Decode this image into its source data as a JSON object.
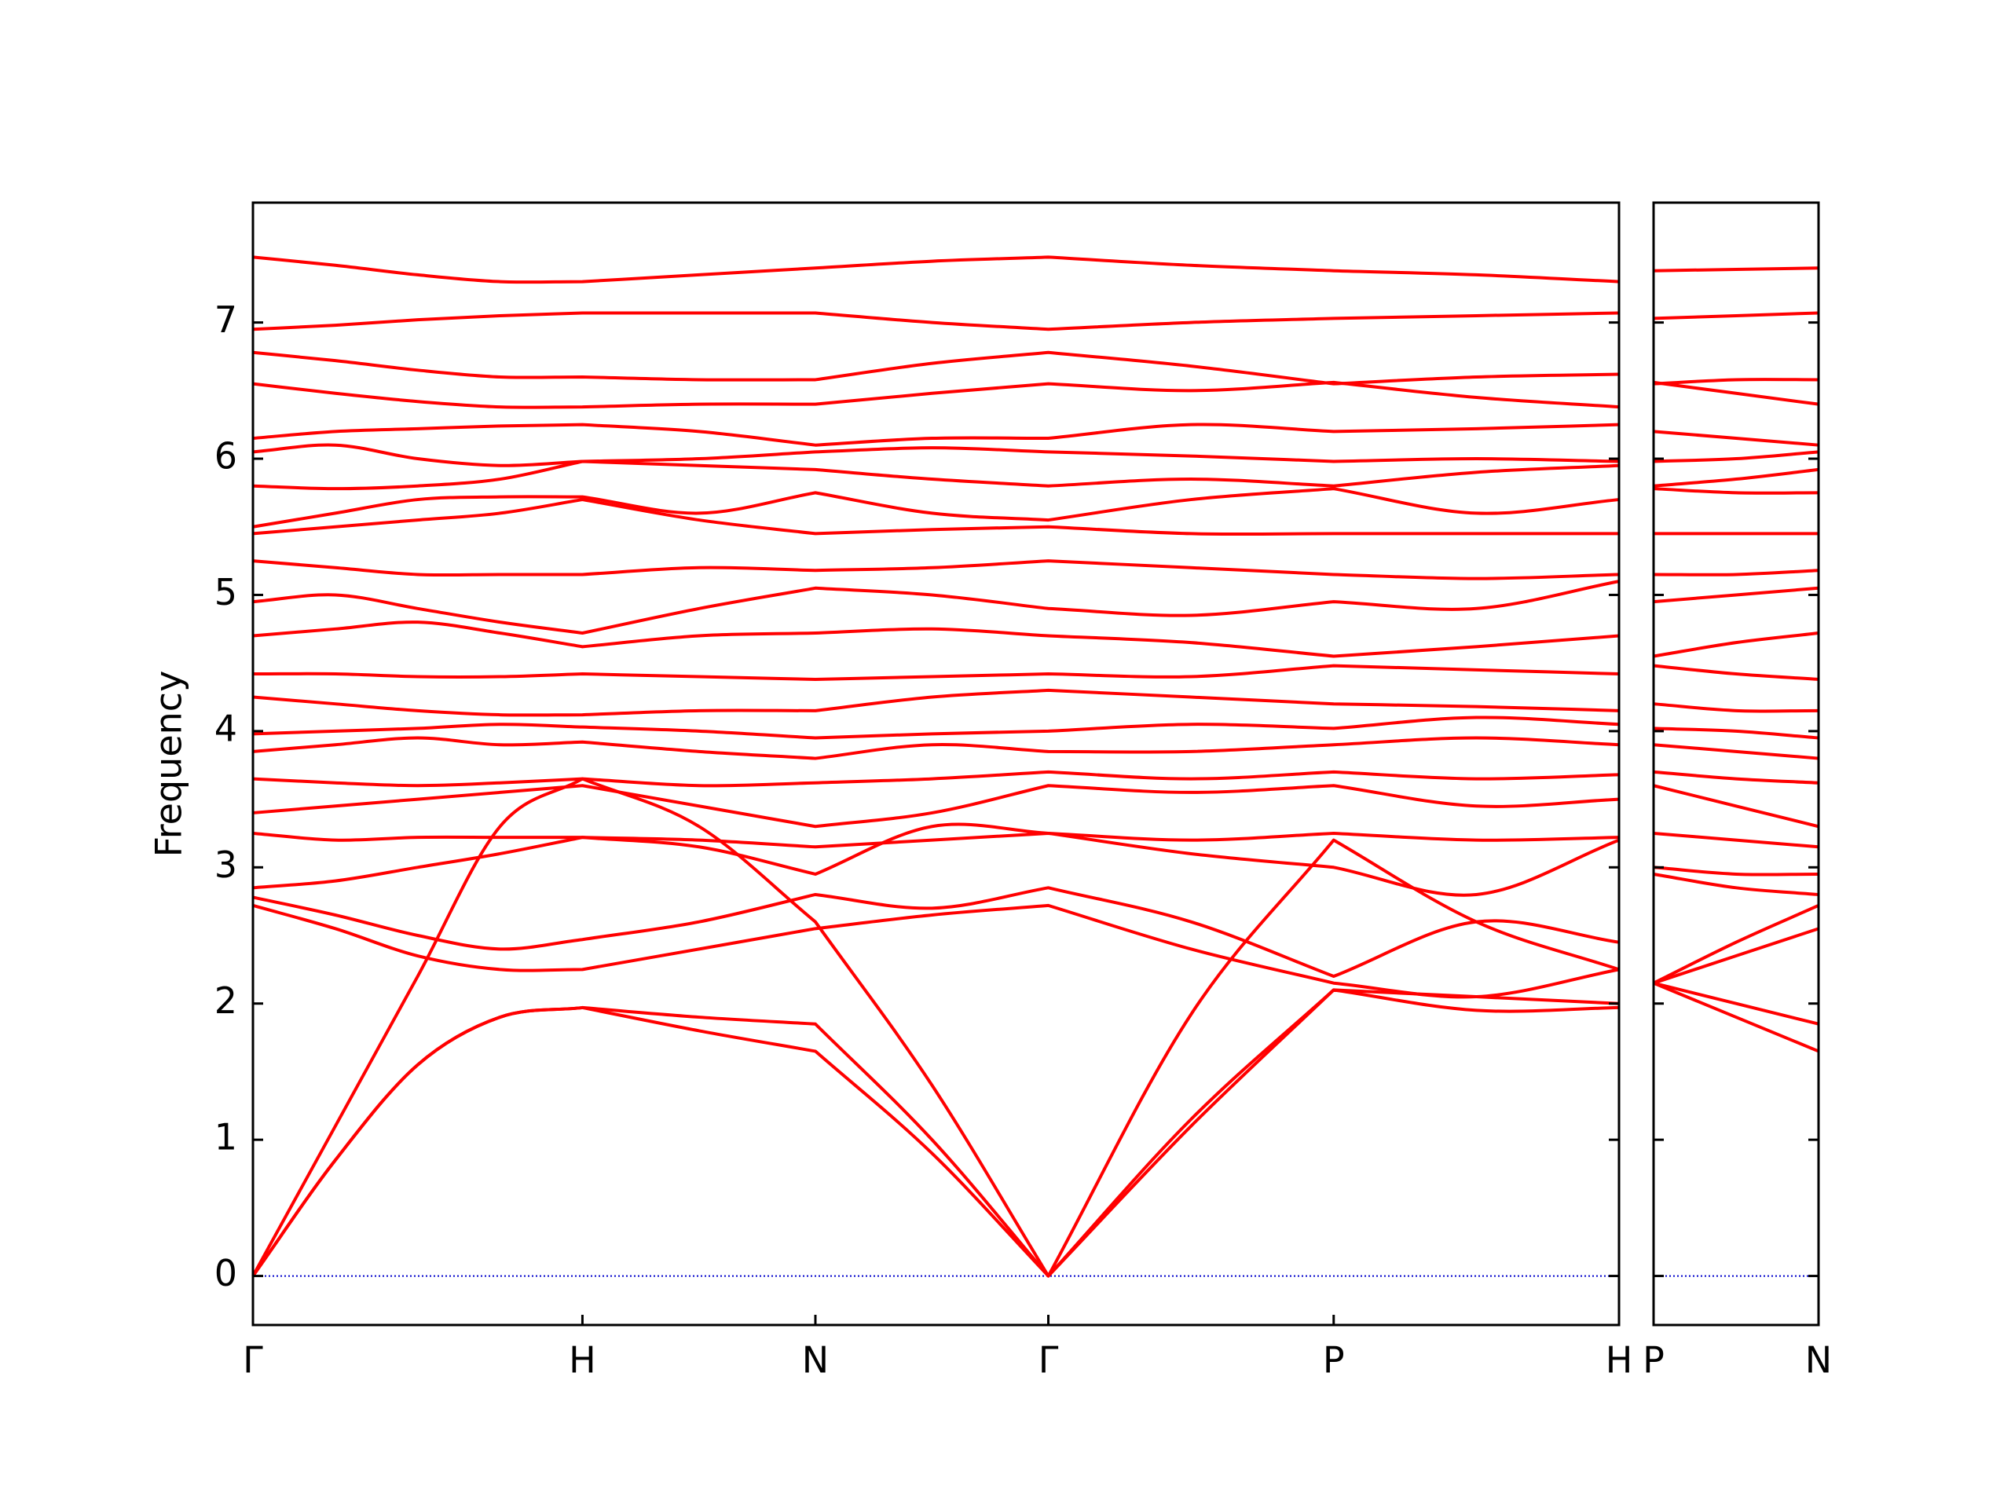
{
  "chart_data": [
    {
      "type": "line",
      "ylabel": "Frequency",
      "color": "#ff0000",
      "hlines": [
        0
      ],
      "hline_color": "#0000cc",
      "ytick_labels": true,
      "x": [
        0,
        0.25,
        0.5,
        0.75,
        1,
        1.354,
        1.707,
        2.061,
        2.414,
        2.847,
        3.28,
        3.713,
        4.146
      ],
      "xlim": [
        0,
        4.146
      ],
      "xticks": [
        {
          "value": 0,
          "label": "Γ"
        },
        {
          "value": 1,
          "label": "H"
        },
        {
          "value": 1.707,
          "label": "N"
        },
        {
          "value": 2.414,
          "label": "Γ"
        },
        {
          "value": 3.28,
          "label": "P"
        },
        {
          "value": 4.146,
          "label": "H"
        }
      ],
      "ylim": [
        -0.36,
        7.88
      ],
      "yticks": [
        0,
        1,
        2,
        3,
        4,
        5,
        6,
        7
      ],
      "series": [
        {
          "values": [
            0,
            0.85,
            1.55,
            1.9,
            1.97,
            1.8,
            1.65,
            0.9,
            0,
            1.1,
            2.1,
            1.95,
            1.97
          ]
        },
        {
          "values": [
            0,
            0.85,
            1.55,
            1.9,
            1.97,
            1.9,
            1.85,
            1.0,
            0,
            1.15,
            2.1,
            2.05,
            2.0
          ]
        },
        {
          "values": [
            0,
            1.1,
            2.2,
            3.3,
            3.65,
            3.3,
            2.6,
            1.4,
            0,
            1.92,
            3.2,
            2.6,
            2.25
          ]
        },
        {
          "values": [
            2.72,
            2.55,
            2.35,
            2.25,
            2.25,
            2.4,
            2.55,
            2.65,
            2.72,
            2.4,
            2.15,
            2.05,
            2.25
          ]
        },
        {
          "values": [
            2.78,
            2.65,
            2.5,
            2.4,
            2.47,
            2.6,
            2.8,
            2.7,
            2.85,
            2.6,
            2.2,
            2.6,
            2.45
          ]
        },
        {
          "values": [
            2.85,
            2.9,
            3.0,
            3.1,
            3.22,
            3.15,
            2.95,
            3.3,
            3.25,
            3.1,
            3.0,
            2.8,
            3.2
          ]
        },
        {
          "values": [
            3.25,
            3.2,
            3.22,
            3.22,
            3.22,
            3.2,
            3.15,
            3.2,
            3.25,
            3.2,
            3.25,
            3.2,
            3.22
          ]
        },
        {
          "values": [
            3.4,
            3.45,
            3.5,
            3.55,
            3.6,
            3.45,
            3.3,
            3.4,
            3.6,
            3.55,
            3.6,
            3.45,
            3.5
          ]
        },
        {
          "values": [
            3.65,
            3.62,
            3.6,
            3.62,
            3.65,
            3.6,
            3.62,
            3.65,
            3.7,
            3.65,
            3.7,
            3.65,
            3.68
          ]
        },
        {
          "values": [
            3.85,
            3.9,
            3.95,
            3.9,
            3.92,
            3.85,
            3.8,
            3.9,
            3.85,
            3.85,
            3.9,
            3.95,
            3.9
          ]
        },
        {
          "values": [
            3.98,
            4.0,
            4.02,
            4.05,
            4.03,
            4.0,
            3.95,
            3.98,
            4.0,
            4.05,
            4.02,
            4.1,
            4.05
          ]
        },
        {
          "values": [
            4.25,
            4.2,
            4.15,
            4.12,
            4.12,
            4.15,
            4.15,
            4.25,
            4.3,
            4.25,
            4.2,
            4.18,
            4.15
          ]
        },
        {
          "values": [
            4.42,
            4.42,
            4.4,
            4.4,
            4.42,
            4.4,
            4.38,
            4.4,
            4.42,
            4.4,
            4.48,
            4.45,
            4.42
          ]
        },
        {
          "values": [
            4.7,
            4.75,
            4.8,
            4.72,
            4.62,
            4.7,
            4.72,
            4.75,
            4.7,
            4.65,
            4.55,
            4.62,
            4.7
          ]
        },
        {
          "values": [
            4.95,
            5.0,
            4.9,
            4.8,
            4.72,
            4.9,
            5.05,
            5.0,
            4.9,
            4.85,
            4.95,
            4.9,
            5.1
          ]
        },
        {
          "values": [
            5.25,
            5.2,
            5.15,
            5.15,
            5.15,
            5.2,
            5.18,
            5.2,
            5.25,
            5.2,
            5.15,
            5.12,
            5.15
          ]
        },
        {
          "values": [
            5.45,
            5.5,
            5.55,
            5.6,
            5.7,
            5.55,
            5.45,
            5.48,
            5.5,
            5.45,
            5.45,
            5.45,
            5.45
          ]
        },
        {
          "values": [
            5.5,
            5.6,
            5.7,
            5.72,
            5.72,
            5.6,
            5.75,
            5.6,
            5.55,
            5.7,
            5.78,
            5.6,
            5.7
          ]
        },
        {
          "values": [
            5.8,
            5.78,
            5.8,
            5.85,
            5.98,
            5.95,
            5.92,
            5.85,
            5.8,
            5.85,
            5.8,
            5.9,
            5.95
          ]
        },
        {
          "values": [
            6.05,
            6.1,
            6.0,
            5.95,
            5.98,
            6.0,
            6.05,
            6.08,
            6.05,
            6.02,
            5.98,
            6.0,
            5.98
          ]
        },
        {
          "values": [
            6.15,
            6.2,
            6.22,
            6.24,
            6.25,
            6.2,
            6.1,
            6.15,
            6.15,
            6.25,
            6.2,
            6.22,
            6.25
          ]
        },
        {
          "values": [
            6.55,
            6.48,
            6.42,
            6.38,
            6.38,
            6.4,
            6.4,
            6.48,
            6.55,
            6.5,
            6.56,
            6.45,
            6.38
          ]
        },
        {
          "values": [
            6.78,
            6.72,
            6.65,
            6.6,
            6.6,
            6.58,
            6.58,
            6.7,
            6.78,
            6.68,
            6.55,
            6.6,
            6.62
          ]
        },
        {
          "values": [
            6.95,
            6.98,
            7.02,
            7.05,
            7.07,
            7.07,
            7.07,
            7.0,
            6.95,
            7.0,
            7.03,
            7.05,
            7.07
          ]
        },
        {
          "values": [
            7.48,
            7.42,
            7.35,
            7.3,
            7.3,
            7.35,
            7.4,
            7.45,
            7.48,
            7.42,
            7.38,
            7.35,
            7.3
          ]
        }
      ]
    },
    {
      "type": "line",
      "color": "#ff0000",
      "hlines": [
        0
      ],
      "hline_color": "#0000cc",
      "ytick_labels": false,
      "x": [
        0,
        0.25,
        0.5
      ],
      "xlim": [
        0,
        0.5
      ],
      "xticks": [
        {
          "value": 0,
          "label": "P"
        },
        {
          "value": 0.5,
          "label": "N"
        }
      ],
      "ylim": [
        -0.36,
        7.88
      ],
      "yticks": [
        0,
        1,
        2,
        3,
        4,
        5,
        6,
        7
      ],
      "series": [
        {
          "values": [
            2.15,
            1.9,
            1.65
          ]
        },
        {
          "values": [
            2.15,
            2.0,
            1.85
          ]
        },
        {
          "values": [
            2.15,
            2.35,
            2.55
          ]
        },
        {
          "values": [
            2.15,
            2.45,
            2.72
          ]
        },
        {
          "values": [
            2.95,
            2.85,
            2.8
          ]
        },
        {
          "values": [
            3.0,
            2.95,
            2.95
          ]
        },
        {
          "values": [
            3.25,
            3.2,
            3.15
          ]
        },
        {
          "values": [
            3.6,
            3.45,
            3.3
          ]
        },
        {
          "values": [
            3.7,
            3.65,
            3.62
          ]
        },
        {
          "values": [
            3.9,
            3.85,
            3.8
          ]
        },
        {
          "values": [
            4.02,
            4.0,
            3.95
          ]
        },
        {
          "values": [
            4.2,
            4.15,
            4.15
          ]
        },
        {
          "values": [
            4.48,
            4.42,
            4.38
          ]
        },
        {
          "values": [
            4.55,
            4.65,
            4.72
          ]
        },
        {
          "values": [
            4.95,
            5.0,
            5.05
          ]
        },
        {
          "values": [
            5.15,
            5.15,
            5.18
          ]
        },
        {
          "values": [
            5.45,
            5.45,
            5.45
          ]
        },
        {
          "values": [
            5.78,
            5.75,
            5.75
          ]
        },
        {
          "values": [
            5.8,
            5.85,
            5.92
          ]
        },
        {
          "values": [
            5.98,
            6.0,
            6.05
          ]
        },
        {
          "values": [
            6.2,
            6.15,
            6.1
          ]
        },
        {
          "values": [
            6.56,
            6.48,
            6.4
          ]
        },
        {
          "values": [
            6.55,
            6.58,
            6.58
          ]
        },
        {
          "values": [
            7.03,
            7.05,
            7.07
          ]
        },
        {
          "values": [
            7.38,
            7.39,
            7.4
          ]
        }
      ]
    }
  ]
}
